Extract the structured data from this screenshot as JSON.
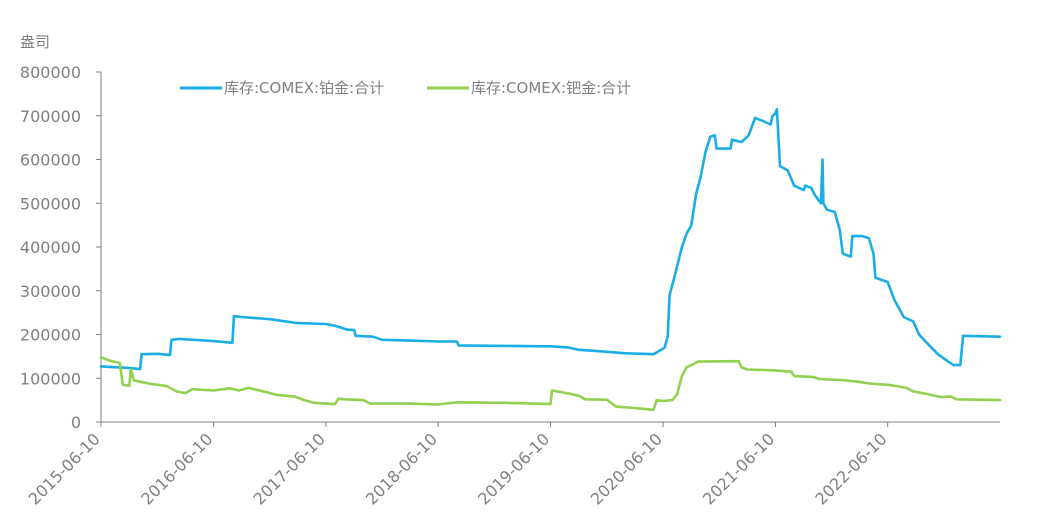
{
  "chart_data": {
    "type": "line",
    "ylabel": "盎司",
    "ylim": [
      0,
      800000
    ],
    "y_ticks": [
      0,
      100000,
      200000,
      300000,
      400000,
      500000,
      600000,
      700000,
      800000
    ],
    "x_range": [
      "2015-06-10",
      "2023-06-10"
    ],
    "x_ticks": [
      "2015-06-10",
      "2016-06-10",
      "2017-06-10",
      "2018-06-10",
      "2019-06-10",
      "2020-06-10",
      "2021-06-10",
      "2022-06-10"
    ],
    "legend": {
      "position": "top-left"
    },
    "grid": false,
    "series": [
      {
        "name": "库存:COMEX:铂金:合计",
        "color": "#1aaee5",
        "points": [
          [
            "2015-06-10",
            127000
          ],
          [
            "2015-09-01",
            124000
          ],
          [
            "2015-10-15",
            121000
          ],
          [
            "2015-10-20",
            155000
          ],
          [
            "2015-12-15",
            156000
          ],
          [
            "2016-01-20",
            153000
          ],
          [
            "2016-01-25",
            188000
          ],
          [
            "2016-02-20",
            190000
          ],
          [
            "2016-06-10",
            185000
          ],
          [
            "2016-08-10",
            181000
          ],
          [
            "2016-08-15",
            242000
          ],
          [
            "2016-09-10",
            240000
          ],
          [
            "2016-12-10",
            235000
          ],
          [
            "2017-03-10",
            226000
          ],
          [
            "2017-06-10",
            224000
          ],
          [
            "2017-07-10",
            220000
          ],
          [
            "2017-08-20",
            211000
          ],
          [
            "2017-09-10",
            210000
          ],
          [
            "2017-09-15",
            197000
          ],
          [
            "2017-11-10",
            195000
          ],
          [
            "2017-12-10",
            188000
          ],
          [
            "2018-03-10",
            186000
          ],
          [
            "2018-06-10",
            184000
          ],
          [
            "2018-08-10",
            184000
          ],
          [
            "2018-08-15",
            175000
          ],
          [
            "2019-01-10",
            174000
          ],
          [
            "2019-06-10",
            173000
          ],
          [
            "2019-08-10",
            170000
          ],
          [
            "2019-09-10",
            165000
          ],
          [
            "2019-11-10",
            162000
          ],
          [
            "2020-02-10",
            157000
          ],
          [
            "2020-05-10",
            155000
          ],
          [
            "2020-06-15",
            170000
          ],
          [
            "2020-06-25",
            195000
          ],
          [
            "2020-07-01",
            290000
          ],
          [
            "2020-07-20",
            340000
          ],
          [
            "2020-08-10",
            400000
          ],
          [
            "2020-08-25",
            430000
          ],
          [
            "2020-09-10",
            450000
          ],
          [
            "2020-09-25",
            520000
          ],
          [
            "2020-10-10",
            560000
          ],
          [
            "2020-10-25",
            615000
          ],
          [
            "2020-11-10",
            652000
          ],
          [
            "2020-11-25",
            655000
          ],
          [
            "2020-12-01",
            625000
          ],
          [
            "2021-01-15",
            625000
          ],
          [
            "2021-01-20",
            645000
          ],
          [
            "2021-02-20",
            640000
          ],
          [
            "2021-03-15",
            655000
          ],
          [
            "2021-04-05",
            695000
          ],
          [
            "2021-05-01",
            688000
          ],
          [
            "2021-05-25",
            680000
          ],
          [
            "2021-06-01",
            700000
          ],
          [
            "2021-06-10",
            705000
          ],
          [
            "2021-06-15",
            715000
          ],
          [
            "2021-06-25",
            585000
          ],
          [
            "2021-07-20",
            575000
          ],
          [
            "2021-08-10",
            540000
          ],
          [
            "2021-09-10",
            530000
          ],
          [
            "2021-09-15",
            540000
          ],
          [
            "2021-10-05",
            535000
          ],
          [
            "2021-10-15",
            520000
          ],
          [
            "2021-10-25",
            510000
          ],
          [
            "2021-11-05",
            500000
          ],
          [
            "2021-11-10",
            600000
          ],
          [
            "2021-11-13",
            500000
          ],
          [
            "2021-11-25",
            485000
          ],
          [
            "2021-12-20",
            480000
          ],
          [
            "2022-01-05",
            440000
          ],
          [
            "2022-01-15",
            385000
          ],
          [
            "2022-02-10",
            378000
          ],
          [
            "2022-02-15",
            425000
          ],
          [
            "2022-03-20",
            425000
          ],
          [
            "2022-04-10",
            420000
          ],
          [
            "2022-04-25",
            385000
          ],
          [
            "2022-05-01",
            330000
          ],
          [
            "2022-06-01",
            322000
          ],
          [
            "2022-06-10",
            320000
          ],
          [
            "2022-07-01",
            280000
          ],
          [
            "2022-07-15",
            262000
          ],
          [
            "2022-08-01",
            240000
          ],
          [
            "2022-09-01",
            230000
          ],
          [
            "2022-09-20",
            200000
          ],
          [
            "2022-10-10",
            185000
          ],
          [
            "2022-11-20",
            155000
          ],
          [
            "2022-12-20",
            140000
          ],
          [
            "2023-01-10",
            130000
          ],
          [
            "2023-02-01",
            130000
          ],
          [
            "2023-02-10",
            197000
          ],
          [
            "2023-06-10",
            195000
          ]
        ]
      },
      {
        "name": "库存:COMEX:钯金:合计",
        "color": "#92d050",
        "points": [
          [
            "2015-06-10",
            148000
          ],
          [
            "2015-07-10",
            140000
          ],
          [
            "2015-08-10",
            135000
          ],
          [
            "2015-08-20",
            85000
          ],
          [
            "2015-09-10",
            83000
          ],
          [
            "2015-09-15",
            120000
          ],
          [
            "2015-09-25",
            95000
          ],
          [
            "2015-11-10",
            88000
          ],
          [
            "2016-01-10",
            82000
          ],
          [
            "2016-02-10",
            70000
          ],
          [
            "2016-03-10",
            66000
          ],
          [
            "2016-04-01",
            75000
          ],
          [
            "2016-06-10",
            72000
          ],
          [
            "2016-08-01",
            77000
          ],
          [
            "2016-09-01",
            72000
          ],
          [
            "2016-10-01",
            78000
          ],
          [
            "2016-12-01",
            68000
          ],
          [
            "2017-01-01",
            62000
          ],
          [
            "2017-03-01",
            58000
          ],
          [
            "2017-04-01",
            50000
          ],
          [
            "2017-05-01",
            44000
          ],
          [
            "2017-06-10",
            42000
          ],
          [
            "2017-07-10",
            41000
          ],
          [
            "2017-07-20",
            53000
          ],
          [
            "2017-08-10",
            52000
          ],
          [
            "2017-10-10",
            50000
          ],
          [
            "2017-11-01",
            42000
          ],
          [
            "2018-03-10",
            42000
          ],
          [
            "2018-06-10",
            40000
          ],
          [
            "2018-08-10",
            45000
          ],
          [
            "2019-01-10",
            44000
          ],
          [
            "2019-04-10",
            42000
          ],
          [
            "2019-06-10",
            41000
          ],
          [
            "2019-06-15",
            72000
          ],
          [
            "2019-08-10",
            65000
          ],
          [
            "2019-09-10",
            60000
          ],
          [
            "2019-10-01",
            52000
          ],
          [
            "2019-12-10",
            51000
          ],
          [
            "2020-01-10",
            35000
          ],
          [
            "2020-03-10",
            32000
          ],
          [
            "2020-04-10",
            30000
          ],
          [
            "2020-05-10",
            28000
          ],
          [
            "2020-05-20",
            50000
          ],
          [
            "2020-06-10",
            48000
          ],
          [
            "2020-07-10",
            50000
          ],
          [
            "2020-07-25",
            63000
          ],
          [
            "2020-08-10",
            105000
          ],
          [
            "2020-08-25",
            125000
          ],
          [
            "2020-09-10",
            130000
          ],
          [
            "2020-10-01",
            138000
          ],
          [
            "2021-02-10",
            139000
          ],
          [
            "2021-02-20",
            125000
          ],
          [
            "2021-03-10",
            120000
          ],
          [
            "2021-06-10",
            118000
          ],
          [
            "2021-08-01",
            115000
          ],
          [
            "2021-08-10",
            105000
          ],
          [
            "2021-10-10",
            103000
          ],
          [
            "2021-11-01",
            98000
          ],
          [
            "2022-01-10",
            96000
          ],
          [
            "2022-03-10",
            92000
          ],
          [
            "2022-04-10",
            88000
          ],
          [
            "2022-06-10",
            85000
          ],
          [
            "2022-07-10",
            82000
          ],
          [
            "2022-08-10",
            78000
          ],
          [
            "2022-09-01",
            70000
          ],
          [
            "2022-10-10",
            65000
          ],
          [
            "2022-12-01",
            57000
          ],
          [
            "2023-01-01",
            58000
          ],
          [
            "2023-01-20",
            52000
          ],
          [
            "2023-06-10",
            50000
          ]
        ]
      }
    ]
  }
}
